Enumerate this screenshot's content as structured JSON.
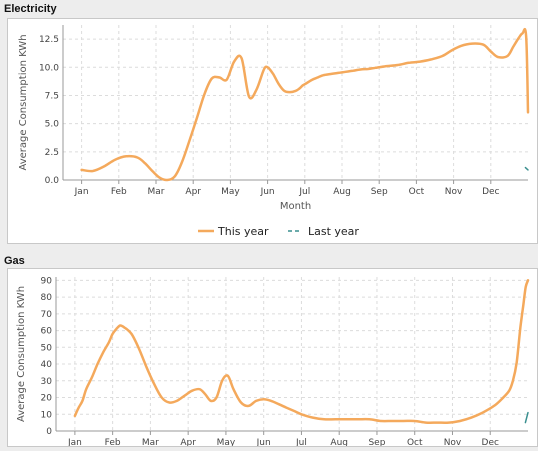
{
  "panels": {
    "electricity": {
      "title": "Electricity"
    },
    "gas": {
      "title": "Gas"
    }
  },
  "chart_data": [
    {
      "type": "line",
      "title": "Electricity",
      "xlabel": "Month",
      "ylabel": "Average Consumption KWh",
      "categories": [
        "Jan",
        "Feb",
        "Mar",
        "Apr",
        "May",
        "Jun",
        "Jul",
        "Aug",
        "Sep",
        "Oct",
        "Nov",
        "Dec"
      ],
      "ylim": [
        0,
        13.75
      ],
      "yticks": [
        "0.0",
        "2.5",
        "5.0",
        "7.5",
        "10.0",
        "12.5"
      ],
      "grid": true,
      "legend": "bottom-center",
      "series": [
        {
          "name": "This year",
          "color": "#f4a95c",
          "x": [
            0.0,
            0.3,
            0.6,
            0.9,
            1.2,
            1.5,
            1.7,
            1.9,
            2.1,
            2.3,
            2.5,
            2.7,
            2.9,
            3.1,
            3.3,
            3.5,
            3.7,
            3.9,
            4.1,
            4.3,
            4.5,
            4.7,
            4.9,
            5.0,
            5.15,
            5.3,
            5.45,
            5.6,
            5.75,
            5.85,
            5.95,
            6.05,
            6.2,
            6.35,
            6.5,
            6.7,
            6.9,
            7.1,
            7.3,
            7.5,
            7.7,
            7.9,
            8.2,
            8.5,
            8.8,
            9.1,
            9.4,
            9.7,
            9.95,
            10.2,
            10.5,
            10.8,
            11.0,
            11.2,
            11.45,
            11.6,
            11.75,
            11.85,
            11.95,
            12.0
          ],
          "y": [
            0.9,
            0.8,
            1.2,
            1.8,
            2.1,
            2.0,
            1.5,
            0.8,
            0.2,
            0.0,
            0.3,
            1.6,
            3.5,
            5.5,
            7.6,
            9.0,
            9.1,
            8.9,
            10.5,
            10.8,
            7.4,
            8.0,
            9.8,
            10.0,
            9.4,
            8.5,
            7.9,
            7.8,
            7.9,
            8.1,
            8.4,
            8.6,
            8.9,
            9.1,
            9.3,
            9.4,
            9.5,
            9.6,
            9.7,
            9.8,
            9.85,
            9.95,
            10.1,
            10.2,
            10.4,
            10.5,
            10.7,
            11.0,
            11.5,
            11.9,
            12.1,
            12.0,
            11.4,
            10.9,
            11.0,
            11.8,
            12.6,
            13.0,
            12.8,
            6.0
          ]
        },
        {
          "name": "Last year",
          "color": "#3a8f8f",
          "x": [
            11.93,
            12.0
          ],
          "y": [
            1.1,
            0.9
          ]
        }
      ]
    },
    {
      "type": "line",
      "title": "Gas",
      "xlabel": "",
      "ylabel": "Average Consumption KWh",
      "categories": [
        "Jan",
        "Feb",
        "Mar",
        "Apr",
        "May",
        "Jun",
        "Jul",
        "Aug",
        "Sep",
        "Oct",
        "Nov",
        "Dec"
      ],
      "ylim": [
        0,
        92
      ],
      "yticks": [
        "0",
        "10",
        "20",
        "30",
        "40",
        "50",
        "60",
        "70",
        "80",
        "90"
      ],
      "grid": true,
      "series": [
        {
          "name": "This year",
          "color": "#f4a95c",
          "x": [
            0.0,
            0.1,
            0.2,
            0.3,
            0.45,
            0.6,
            0.75,
            0.9,
            1.0,
            1.1,
            1.2,
            1.3,
            1.5,
            1.7,
            1.9,
            2.1,
            2.3,
            2.5,
            2.7,
            2.9,
            3.1,
            3.3,
            3.45,
            3.6,
            3.75,
            3.9,
            4.05,
            4.2,
            4.4,
            4.6,
            4.8,
            5.0,
            5.2,
            5.4,
            5.6,
            5.8,
            6.0,
            6.3,
            6.6,
            6.9,
            7.2,
            7.5,
            7.8,
            8.1,
            8.4,
            8.7,
            9.0,
            9.3,
            9.6,
            9.9,
            10.2,
            10.5,
            10.8,
            11.1,
            11.3,
            11.5,
            11.6,
            11.7,
            11.8,
            11.88,
            11.94,
            12.0
          ],
          "y": [
            9,
            14,
            18,
            25,
            32,
            40,
            47,
            53,
            58,
            61,
            63,
            62,
            58,
            49,
            38,
            28,
            20,
            17,
            18,
            21,
            24,
            25,
            22,
            18,
            20,
            30,
            33,
            25,
            17,
            15,
            18,
            19,
            18,
            16,
            14,
            12,
            10,
            8,
            7,
            7,
            7,
            7,
            7,
            6,
            6,
            6,
            6,
            5,
            5,
            5,
            6,
            8,
            11,
            15,
            19,
            24,
            30,
            41,
            62,
            76,
            86,
            90
          ],
          "yfix": true
        },
        {
          "name": "Last year",
          "color": "#3a8f8f",
          "x": [
            11.93,
            12.0
          ],
          "y": [
            5,
            11
          ]
        }
      ]
    }
  ]
}
